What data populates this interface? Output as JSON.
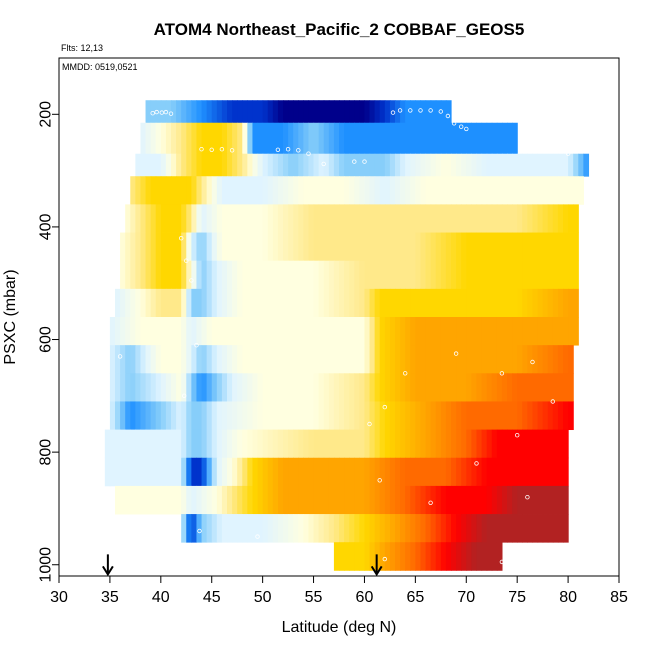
{
  "chart_data": {
    "type": "heatmap",
    "title": "ATOM4 Northeast_Pacific_2 COBBAF_GEOS5",
    "annotations": {
      "flights": "Flts: 12,13",
      "dates": "MMDD: 0519,0521"
    },
    "xlabel": "Latitude (deg N)",
    "ylabel": "PSXC (mbar)",
    "xlim": [
      30,
      85
    ],
    "ylim": [
      1020,
      100
    ],
    "y_reversed": true,
    "xticks": [
      "30",
      "35",
      "40",
      "45",
      "50",
      "55",
      "60",
      "65",
      "70",
      "75",
      "80",
      "85"
    ],
    "yticks": [
      "200",
      "400",
      "600",
      "800",
      "1000"
    ],
    "ytick_values": [
      200,
      400,
      600,
      800,
      1000
    ],
    "grid": false,
    "legend": "none",
    "color_scale": [
      "#00008b",
      "#0033cc",
      "#1e90ff",
      "#87cefa",
      "#e0f4ff",
      "#ffffe0",
      "#ffe98a",
      "#ffd700",
      "#ffa500",
      "#ff6a00",
      "#ff0000",
      "#b22222"
    ],
    "bands": [
      {
        "p": [
          175,
          215
        ],
        "x": [
          38.5,
          68.5
        ],
        "stops": [
          [
            38.5,
            3
          ],
          [
            41,
            3
          ],
          [
            44,
            2
          ],
          [
            47,
            1
          ],
          [
            50,
            1
          ],
          [
            52,
            0
          ],
          [
            55,
            0
          ],
          [
            58,
            0
          ],
          [
            60,
            0
          ],
          [
            62,
            1
          ],
          [
            64,
            2
          ],
          [
            66,
            2
          ],
          [
            68.5,
            2
          ]
        ]
      },
      {
        "p": [
          215,
          270
        ],
        "x": [
          38,
          75
        ],
        "stops": [
          [
            38,
            4
          ],
          [
            40,
            5
          ],
          [
            42,
            6
          ],
          [
            44,
            7
          ],
          [
            46,
            7
          ],
          [
            48,
            6
          ],
          [
            49,
            2
          ],
          [
            52,
            2
          ],
          [
            55,
            3
          ],
          [
            58,
            2
          ],
          [
            61,
            2
          ],
          [
            64,
            2
          ],
          [
            67,
            2
          ],
          [
            70,
            2
          ],
          [
            75,
            2
          ]
        ]
      },
      {
        "p": [
          270,
          310
        ],
        "x": [
          37.5,
          82
        ],
        "stops": [
          [
            37.5,
            4
          ],
          [
            40,
            4
          ],
          [
            42,
            6
          ],
          [
            44,
            7
          ],
          [
            46,
            7
          ],
          [
            48,
            6
          ],
          [
            50,
            4
          ],
          [
            53,
            3
          ],
          [
            56,
            4
          ],
          [
            58,
            3
          ],
          [
            60,
            3
          ],
          [
            62,
            3
          ],
          [
            64,
            4
          ],
          [
            68,
            5
          ],
          [
            72,
            4
          ],
          [
            76,
            4
          ],
          [
            80,
            4
          ],
          [
            82,
            2
          ]
        ]
      },
      {
        "p": [
          310,
          360
        ],
        "x": [
          37,
          81.5
        ],
        "stops": [
          [
            37,
            6
          ],
          [
            39,
            7
          ],
          [
            41,
            7
          ],
          [
            43,
            7
          ],
          [
            44,
            6
          ],
          [
            46,
            4
          ],
          [
            50,
            4
          ],
          [
            54,
            5
          ],
          [
            58,
            5
          ],
          [
            62,
            4
          ],
          [
            66,
            5
          ],
          [
            70,
            5
          ],
          [
            75,
            5
          ],
          [
            80,
            5
          ],
          [
            81.5,
            5
          ]
        ]
      },
      {
        "p": [
          360,
          410
        ],
        "x": [
          36.5,
          81
        ],
        "stops": [
          [
            36.5,
            5
          ],
          [
            38,
            6
          ],
          [
            40,
            7
          ],
          [
            42,
            7
          ],
          [
            43,
            6
          ],
          [
            44,
            4
          ],
          [
            46,
            5
          ],
          [
            50,
            5
          ],
          [
            55,
            6
          ],
          [
            60,
            6
          ],
          [
            65,
            6
          ],
          [
            70,
            6
          ],
          [
            75,
            6
          ],
          [
            80,
            7
          ],
          [
            81,
            7
          ]
        ]
      },
      {
        "p": [
          410,
          460
        ],
        "x": [
          36,
          81
        ],
        "stops": [
          [
            36,
            5
          ],
          [
            38,
            6
          ],
          [
            40,
            7
          ],
          [
            42,
            7
          ],
          [
            43,
            4
          ],
          [
            44,
            3
          ],
          [
            46,
            5
          ],
          [
            50,
            5
          ],
          [
            55,
            6
          ],
          [
            60,
            6
          ],
          [
            65,
            6
          ],
          [
            70,
            7
          ],
          [
            75,
            7
          ],
          [
            80,
            7
          ],
          [
            81,
            7
          ]
        ]
      },
      {
        "p": [
          460,
          510
        ],
        "x": [
          36,
          81
        ],
        "stops": [
          [
            36,
            5
          ],
          [
            38,
            6
          ],
          [
            40,
            7
          ],
          [
            42,
            7
          ],
          [
            43.5,
            4
          ],
          [
            44,
            3
          ],
          [
            45.5,
            4
          ],
          [
            48,
            5
          ],
          [
            55,
            5
          ],
          [
            60,
            6
          ],
          [
            65,
            6
          ],
          [
            70,
            7
          ],
          [
            75,
            7
          ],
          [
            80,
            7
          ],
          [
            81,
            7
          ]
        ]
      },
      {
        "p": [
          510,
          560
        ],
        "x": [
          35.5,
          81
        ],
        "stops": [
          [
            35.5,
            4
          ],
          [
            38,
            5
          ],
          [
            40,
            6
          ],
          [
            42,
            6
          ],
          [
            43,
            3
          ],
          [
            44,
            3
          ],
          [
            45.5,
            4
          ],
          [
            48,
            5
          ],
          [
            55,
            5
          ],
          [
            60,
            6
          ],
          [
            61.5,
            7
          ],
          [
            65,
            7
          ],
          [
            70,
            7
          ],
          [
            75,
            7
          ],
          [
            80,
            8
          ],
          [
            81,
            8
          ]
        ]
      },
      {
        "p": [
          560,
          610
        ],
        "x": [
          35,
          81
        ],
        "stops": [
          [
            35,
            4
          ],
          [
            38,
            5
          ],
          [
            42,
            5
          ],
          [
            43,
            4
          ],
          [
            45,
            5
          ],
          [
            50,
            5
          ],
          [
            55,
            5
          ],
          [
            60,
            5
          ],
          [
            61.5,
            7
          ],
          [
            65,
            8
          ],
          [
            70,
            8
          ],
          [
            75,
            8
          ],
          [
            80,
            8
          ],
          [
            81,
            8
          ]
        ]
      },
      {
        "p": [
          610,
          660
        ],
        "x": [
          35,
          80.5
        ],
        "stops": [
          [
            35,
            4
          ],
          [
            37,
            3
          ],
          [
            40,
            5
          ],
          [
            42,
            5
          ],
          [
            43,
            4
          ],
          [
            44,
            3
          ],
          [
            45.5,
            4
          ],
          [
            48,
            5
          ],
          [
            55,
            5
          ],
          [
            60,
            5
          ],
          [
            61.5,
            7
          ],
          [
            65,
            8
          ],
          [
            70,
            8
          ],
          [
            75,
            8
          ],
          [
            80,
            9
          ],
          [
            80.5,
            9
          ]
        ]
      },
      {
        "p": [
          660,
          710
        ],
        "x": [
          35,
          80.5
        ],
        "stops": [
          [
            35,
            4
          ],
          [
            37,
            3
          ],
          [
            40,
            4
          ],
          [
            42,
            5
          ],
          [
            43,
            3
          ],
          [
            44,
            2
          ],
          [
            45.5,
            3
          ],
          [
            47,
            4
          ],
          [
            50,
            5
          ],
          [
            55,
            5
          ],
          [
            60,
            6
          ],
          [
            61.5,
            7
          ],
          [
            65,
            8
          ],
          [
            70,
            8
          ],
          [
            75,
            9
          ],
          [
            80,
            9
          ],
          [
            80.5,
            9
          ]
        ]
      },
      {
        "p": [
          710,
          760
        ],
        "x": [
          35,
          80.5
        ],
        "stops": [
          [
            35,
            4
          ],
          [
            37,
            2
          ],
          [
            40,
            3
          ],
          [
            42,
            4
          ],
          [
            43,
            3
          ],
          [
            44,
            3
          ],
          [
            45.5,
            4
          ],
          [
            50,
            5
          ],
          [
            55,
            5
          ],
          [
            60,
            6
          ],
          [
            62,
            7
          ],
          [
            66,
            8
          ],
          [
            70,
            9
          ],
          [
            75,
            9
          ],
          [
            80,
            10
          ],
          [
            80.5,
            10
          ]
        ]
      },
      {
        "p": [
          760,
          810
        ],
        "x": [
          34.5,
          80
        ],
        "stops": [
          [
            34.5,
            4
          ],
          [
            38,
            4
          ],
          [
            42,
            4
          ],
          [
            43,
            3
          ],
          [
            44,
            3
          ],
          [
            45.5,
            4
          ],
          [
            48,
            5
          ],
          [
            55,
            6
          ],
          [
            60,
            6
          ],
          [
            62,
            7
          ],
          [
            66,
            8
          ],
          [
            70,
            9
          ],
          [
            73,
            10
          ],
          [
            76,
            10
          ],
          [
            80,
            10
          ]
        ]
      },
      {
        "p": [
          810,
          860
        ],
        "x": [
          34.5,
          80
        ],
        "stops": [
          [
            34.5,
            4
          ],
          [
            38,
            4
          ],
          [
            42,
            4
          ],
          [
            43,
            1
          ],
          [
            44,
            1
          ],
          [
            45.5,
            4
          ],
          [
            47,
            5
          ],
          [
            49,
            7
          ],
          [
            52,
            8
          ],
          [
            56,
            8
          ],
          [
            60,
            8
          ],
          [
            64,
            9
          ],
          [
            68,
            9
          ],
          [
            72,
            10
          ],
          [
            76,
            10
          ],
          [
            80,
            10
          ]
        ]
      },
      {
        "p": [
          860,
          910
        ],
        "x": [
          35.5,
          80
        ],
        "stops": [
          [
            35.5,
            5
          ],
          [
            38,
            5
          ],
          [
            42,
            5
          ],
          [
            43,
            4
          ],
          [
            45.5,
            5
          ],
          [
            47,
            6
          ],
          [
            49,
            7
          ],
          [
            52,
            8
          ],
          [
            56,
            8
          ],
          [
            60,
            8
          ],
          [
            64,
            9
          ],
          [
            68,
            10
          ],
          [
            72,
            10
          ],
          [
            75,
            11
          ],
          [
            80,
            11
          ]
        ]
      },
      {
        "p": [
          910,
          960
        ],
        "x": [
          42,
          80
        ],
        "stops": [
          [
            42,
            4
          ],
          [
            43,
            1
          ],
          [
            44,
            3
          ],
          [
            46,
            4
          ],
          [
            50,
            4
          ],
          [
            54,
            5
          ],
          [
            57,
            6
          ],
          [
            60,
            7
          ],
          [
            63,
            8
          ],
          [
            66,
            9
          ],
          [
            69,
            10
          ],
          [
            72,
            11
          ],
          [
            76,
            11
          ],
          [
            80,
            11
          ]
        ]
      },
      {
        "p": [
          960,
          1010
        ],
        "x": [
          57,
          73.5
        ],
        "stops": [
          [
            57,
            7
          ],
          [
            60,
            7
          ],
          [
            62,
            8
          ],
          [
            65,
            9
          ],
          [
            68,
            10
          ],
          [
            71,
            11
          ],
          [
            73.5,
            11
          ]
        ]
      }
    ],
    "markers": {
      "type": "arrow",
      "latitudes": [
        34.8,
        61.2
      ],
      "arrows_at_pressure": 1010
    },
    "flight_track": [
      [
        39.2,
        198
      ],
      [
        39.6,
        196
      ],
      [
        40.1,
        197
      ],
      [
        40.5,
        196
      ],
      [
        41.0,
        199
      ],
      [
        44.0,
        262
      ],
      [
        45.0,
        263
      ],
      [
        46.0,
        262
      ],
      [
        47.0,
        264
      ],
      [
        51.5,
        263
      ],
      [
        52.5,
        262
      ],
      [
        53.5,
        264
      ],
      [
        54.5,
        270
      ],
      [
        56.0,
        288
      ],
      [
        59.0,
        284
      ],
      [
        60.0,
        284
      ],
      [
        62.8,
        197
      ],
      [
        63.5,
        193
      ],
      [
        64.5,
        193
      ],
      [
        65.5,
        193
      ],
      [
        66.5,
        193
      ],
      [
        67.5,
        195
      ],
      [
        68.2,
        203
      ],
      [
        68.8,
        216
      ],
      [
        69.5,
        222
      ],
      [
        70.0,
        226
      ],
      [
        76.0,
        263
      ],
      [
        78.0,
        265
      ],
      [
        80.0,
        270
      ],
      [
        42.0,
        420
      ],
      [
        42.5,
        460
      ],
      [
        43.0,
        495
      ],
      [
        36.0,
        630
      ],
      [
        43.5,
        610
      ],
      [
        42.3,
        700
      ],
      [
        60.5,
        750
      ],
      [
        62.0,
        720
      ],
      [
        64.0,
        660
      ],
      [
        69.0,
        625
      ],
      [
        73.5,
        660
      ],
      [
        76.5,
        640
      ],
      [
        78.5,
        710
      ],
      [
        61.5,
        850
      ],
      [
        66.5,
        890
      ],
      [
        71.0,
        820
      ],
      [
        75.0,
        770
      ],
      [
        76.0,
        880
      ],
      [
        43.8,
        940
      ],
      [
        49.5,
        950
      ],
      [
        62.0,
        990
      ],
      [
        73.5,
        995
      ]
    ]
  }
}
